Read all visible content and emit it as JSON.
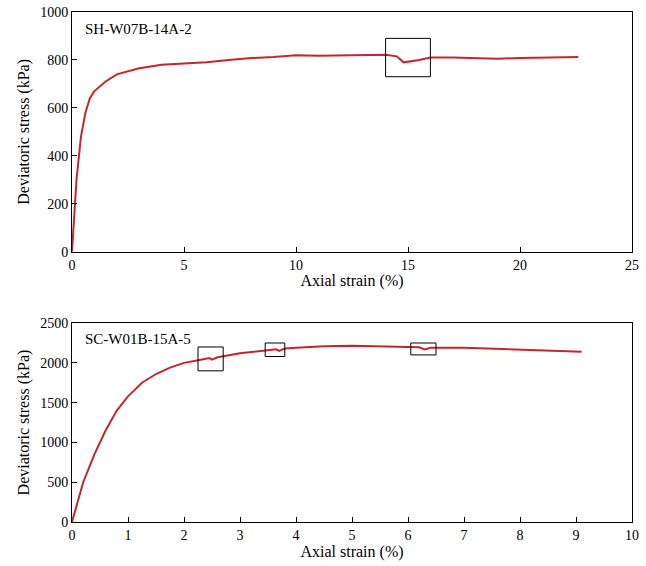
{
  "chart_data": [
    {
      "type": "line",
      "title": "SH-W07B-14A-2",
      "x_label": "Axial strain (%)",
      "y_label": "Deviatoric stress (kPa)",
      "color": "#c0282d",
      "x": [
        0,
        0.2,
        0.4,
        0.6,
        0.8,
        1,
        1.5,
        2,
        3,
        4,
        5,
        6,
        7,
        8,
        9,
        10,
        11,
        12,
        13,
        14,
        14.5,
        14.8,
        15.5,
        16,
        17,
        18,
        19,
        20,
        21,
        22,
        22.6
      ],
      "values": [
        0,
        300,
        480,
        580,
        640,
        670,
        710,
        740,
        765,
        780,
        785,
        790,
        800,
        808,
        812,
        820,
        818,
        820,
        820,
        822,
        815,
        790,
        800,
        810,
        810,
        808,
        805,
        808,
        810,
        812,
        812
      ],
      "xlim": [
        0,
        25
      ],
      "xticks": [
        0,
        5,
        10,
        15,
        20,
        25
      ],
      "ylim": [
        0,
        1000
      ],
      "yticks": [
        0,
        200,
        400,
        600,
        800,
        1000
      ],
      "boxes": [
        {
          "x": [
            14,
            16
          ],
          "y": [
            730,
            890
          ]
        }
      ]
    },
    {
      "type": "line",
      "title": "SC-W01B-15A-5",
      "x_label": "Axial strain (%)",
      "y_label": "Deviatoric stress (kPa)",
      "color": "#c0282d",
      "x": [
        0,
        0.2,
        0.4,
        0.6,
        0.8,
        1,
        1.25,
        1.5,
        1.75,
        2,
        2.3,
        2.45,
        2.5,
        2.6,
        3,
        3.5,
        3.65,
        3.7,
        3.8,
        4,
        4.5,
        5,
        5.5,
        6,
        6.2,
        6.3,
        6.4,
        7,
        7.5,
        8,
        8.5,
        9.1
      ],
      "values": [
        0,
        500,
        850,
        1150,
        1400,
        1580,
        1750,
        1860,
        1940,
        2000,
        2040,
        2060,
        2040,
        2070,
        2120,
        2160,
        2170,
        2150,
        2180,
        2190,
        2210,
        2215,
        2210,
        2200,
        2195,
        2170,
        2190,
        2190,
        2180,
        2170,
        2160,
        2140
      ],
      "xlim": [
        0,
        10
      ],
      "xticks": [
        0,
        1,
        2,
        3,
        4,
        5,
        6,
        7,
        8,
        9,
        10
      ],
      "ylim": [
        0,
        2500
      ],
      "yticks": [
        0,
        500,
        1000,
        1500,
        2000,
        2500
      ],
      "boxes": [
        {
          "x": [
            2.25,
            2.7
          ],
          "y": [
            1900,
            2200
          ]
        },
        {
          "x": [
            3.45,
            3.8
          ],
          "y": [
            2080,
            2250
          ]
        },
        {
          "x": [
            6.05,
            6.5
          ],
          "y": [
            2100,
            2250
          ]
        }
      ]
    }
  ]
}
